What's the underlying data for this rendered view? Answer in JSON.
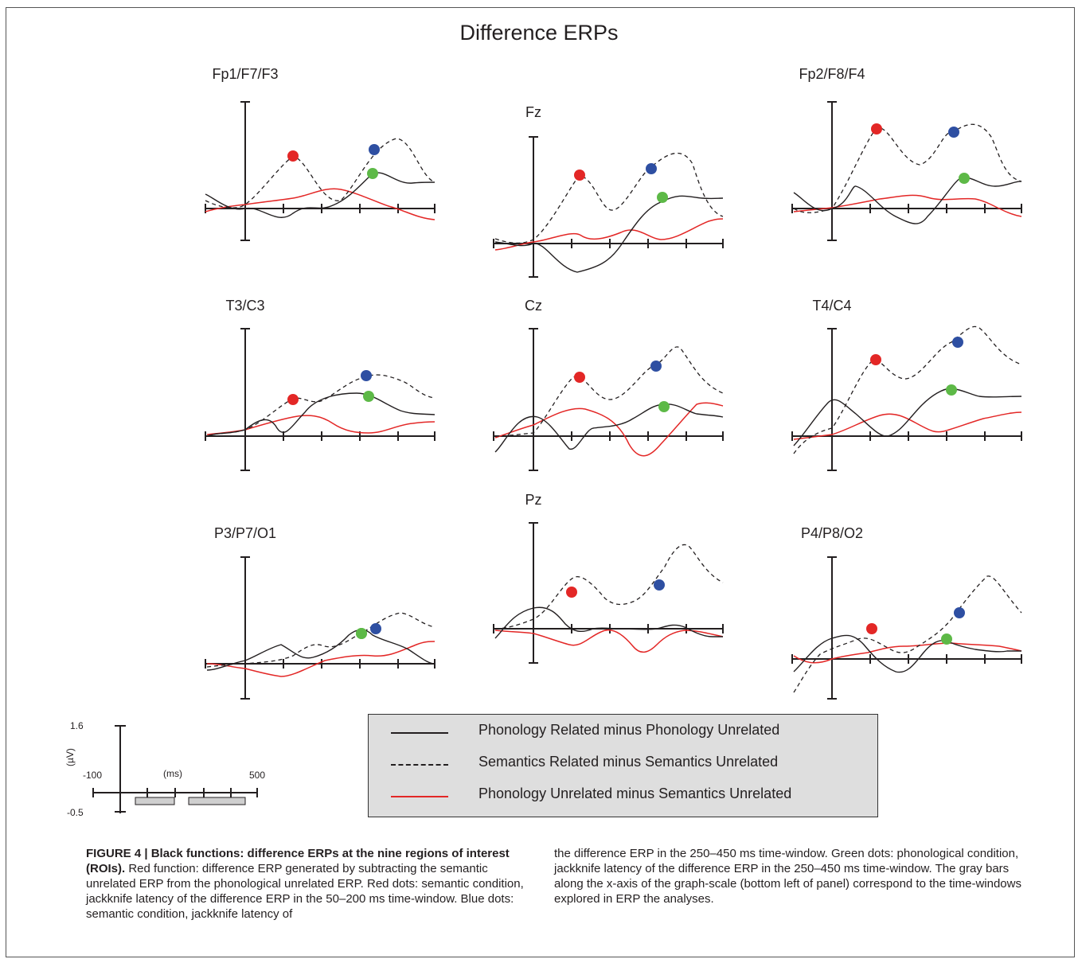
{
  "title": "Difference ERPs",
  "panels": [
    {
      "name": "Fp1/F7/F3"
    },
    {
      "name": "Fz"
    },
    {
      "name": "Fp2/F8/F4"
    },
    {
      "name": "T3/C3"
    },
    {
      "name": "Cz"
    },
    {
      "name": "T4/C4"
    },
    {
      "name": "P3/P7/O1"
    },
    {
      "name": "Pz"
    },
    {
      "name": "P4/P8/O2"
    }
  ],
  "legend": {
    "phon_related": "Phonology Related minus Phonology Unrelated",
    "sem_related": "Semantics Related minus Semantics Unrelated",
    "phon_unrelated": "Phonology Unrelated minus Semantics Unrelated"
  },
  "scale": {
    "y_max": "1.6",
    "y_min": "-0.5",
    "y_unit": "(µV)",
    "x_min": "-100",
    "x_unit": "(ms)",
    "x_max": "500"
  },
  "colors": {
    "red": "#e32726",
    "blue": "#2e4fa2",
    "green": "#5db947",
    "black": "#231f20",
    "legend_bg": "#dedede"
  },
  "caption": {
    "title": "FIGURE 4 | Black functions: difference ERPs at the nine regions of interest (ROIs).",
    "left_body": "Red function: difference ERP generated by subtracting the semantic unrelated ERP from the phonological unrelated ERP. Red dots: semantic condition, jackknife latency of the difference ERP in the 50–200 ms time-window. Blue dots: semantic condition, jackknife latency of",
    "right_body": "the difference ERP in the 250–450 ms time-window. Green dots: phonological condition, jackknife latency of the difference ERP in the 250–450 ms time-window. The gray bars along the x-axis of the graph-scale (bottom left of panel) correspond to the time-windows explored in ERP the analyses."
  }
}
